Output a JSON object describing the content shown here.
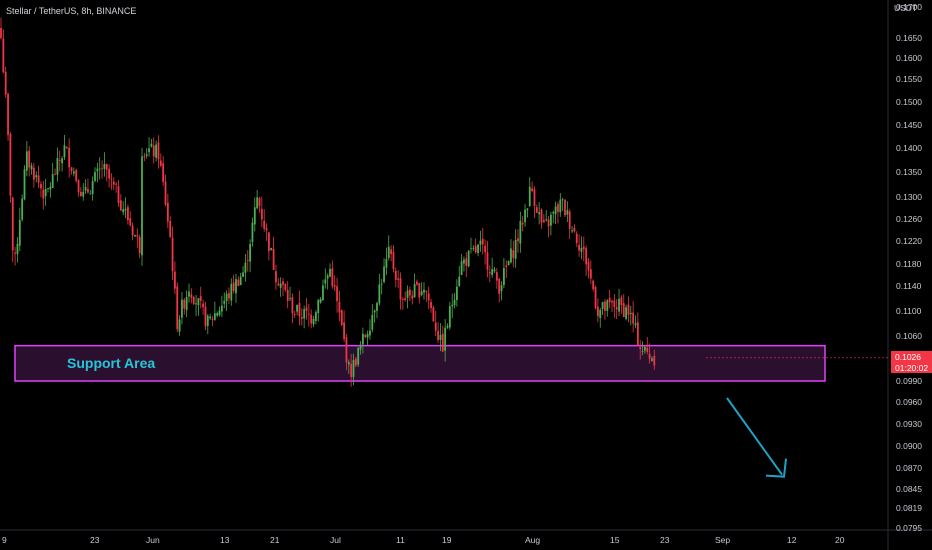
{
  "header": {
    "title": "Stellar / TetherUS, 8h, BINANCE"
  },
  "axis": {
    "currency": "USDT"
  },
  "last_price": {
    "value": "0.1026",
    "countdown": "01:20:02"
  },
  "annotation": {
    "label": "Support Area"
  },
  "colors": {
    "up": "#4caf50",
    "down": "#f23645",
    "zone_border": "#e040fb",
    "zone_fill": "#2a0f2e",
    "arrow": "#1fa2c4",
    "label": "#26c6da"
  },
  "chart_data": {
    "type": "candlestick",
    "title": "Stellar / TetherUS, 8h, BINANCE",
    "y_tick_labels": [
      "0.1700",
      "0.1650",
      "0.1600",
      "0.1550",
      "0.1500",
      "0.1450",
      "0.1400",
      "0.1350",
      "0.1300",
      "0.1260",
      "0.1220",
      "0.1180",
      "0.1140",
      "0.1100",
      "0.1060",
      "0.0990",
      "0.0960",
      "0.0930",
      "0.0900",
      "0.0870",
      "0.0845",
      "0.0819",
      "0.0795"
    ],
    "x_tick_labels": [
      "9",
      "23",
      "Jun",
      "13",
      "21",
      "Jul",
      "11",
      "19",
      "Aug",
      "15",
      "23",
      "Sep",
      "12",
      "20"
    ],
    "scale": "log",
    "support_zone": [
      0.099,
      0.1045
    ],
    "projection": {
      "from": 0.098,
      "to": 0.088,
      "direction": "down"
    },
    "close_path": [
      [
        "May 9",
        0.165
      ],
      [
        "May 10",
        0.145
      ],
      [
        "May 11",
        0.116
      ],
      [
        "May 13",
        0.138
      ],
      [
        "May 16",
        0.13
      ],
      [
        "May 19",
        0.14
      ],
      [
        "May 22",
        0.13
      ],
      [
        "May 25",
        0.136
      ],
      [
        "May 28",
        0.129
      ],
      [
        "May 31",
        0.121
      ],
      [
        "Jun 2",
        0.149
      ],
      [
        "Jun 4",
        0.142
      ],
      [
        "Jun 6",
        0.15
      ],
      [
        "Jun 8",
        0.14
      ],
      [
        "Jun 11",
        0.139
      ],
      [
        "Jun 13",
        0.122
      ],
      [
        "Jun 14",
        0.108
      ],
      [
        "Jun 16",
        0.114
      ],
      [
        "Jun 19",
        0.108
      ],
      [
        "Jun 22",
        0.112
      ],
      [
        "Jun 25",
        0.117
      ],
      [
        "Jun 27",
        0.13
      ],
      [
        "Jun 30",
        0.116
      ],
      [
        "Jul 3",
        0.11
      ],
      [
        "Jul 6",
        0.109
      ],
      [
        "Jul 9",
        0.117
      ],
      [
        "Jul 11",
        0.106
      ],
      [
        "Jul 12",
        0.1
      ],
      [
        "Jul 15",
        0.108
      ],
      [
        "Jul 18",
        0.12
      ],
      [
        "Jul 20",
        0.112
      ],
      [
        "Jul 24",
        0.114
      ],
      [
        "Jul 27",
        0.104
      ],
      [
        "Jul 30",
        0.118
      ],
      [
        "Aug 2",
        0.121
      ],
      [
        "Aug 5",
        0.114
      ],
      [
        "Aug 8",
        0.123
      ],
      [
        "Aug 10",
        0.132
      ],
      [
        "Aug 12",
        0.124
      ],
      [
        "Aug 15",
        0.129
      ],
      [
        "Aug 17",
        0.124
      ],
      [
        "Aug 19",
        0.119
      ],
      [
        "Aug 21",
        0.11
      ],
      [
        "Aug 24",
        0.111
      ],
      [
        "Aug 26",
        0.11
      ],
      [
        "Aug 28",
        0.104
      ],
      [
        "Aug 30",
        0.1026
      ]
    ]
  }
}
